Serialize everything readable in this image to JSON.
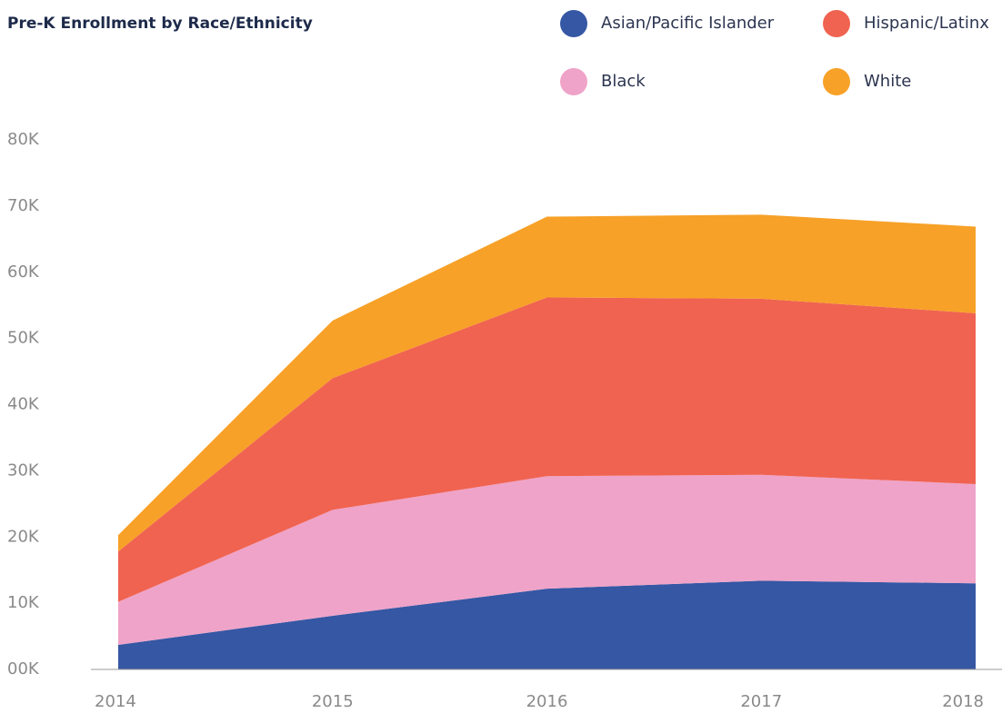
{
  "chart_data": {
    "type": "stacked-area",
    "title": "Pre-K Enrollment by Race/Ethnicity",
    "categories": [
      "2014",
      "2015",
      "2016",
      "2017",
      "2018"
    ],
    "series": [
      {
        "name": "Asian/Pacific Islander",
        "color": "#3557a4",
        "values": [
          3700,
          8100,
          12200,
          13400,
          13000
        ]
      },
      {
        "name": "Black",
        "color": "#efa3c8",
        "values": [
          6500,
          16000,
          17000,
          16000,
          15000
        ]
      },
      {
        "name": "Hispanic/Latinx",
        "color": "#f06351",
        "values": [
          7600,
          19900,
          27000,
          26600,
          25800
        ]
      },
      {
        "name": "White",
        "color": "#f7a128",
        "values": [
          2500,
          8700,
          12200,
          12700,
          13100
        ]
      }
    ],
    "legend_order": [
      0,
      2,
      1,
      3
    ],
    "ylim": [
      0,
      80000
    ],
    "yticks": [
      {
        "value": 0,
        "label": "00K"
      },
      {
        "value": 10000,
        "label": "10K"
      },
      {
        "value": 20000,
        "label": "20K"
      },
      {
        "value": 30000,
        "label": "30K"
      },
      {
        "value": 40000,
        "label": "40K"
      },
      {
        "value": 50000,
        "label": "50K"
      },
      {
        "value": 60000,
        "label": "60K"
      },
      {
        "value": 70000,
        "label": "70K"
      },
      {
        "value": 80000,
        "label": "80K"
      }
    ],
    "grid": false
  }
}
